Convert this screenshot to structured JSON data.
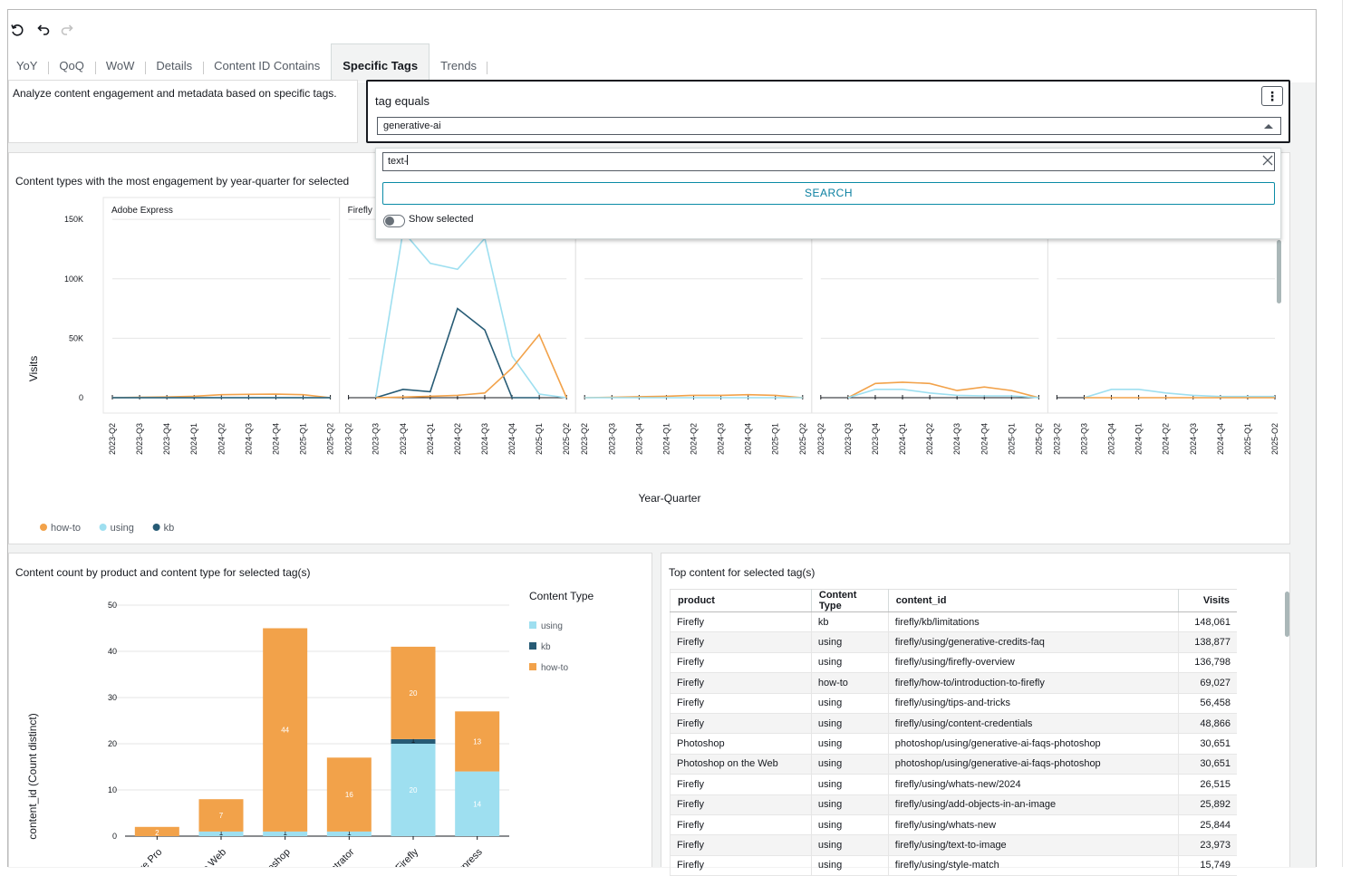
{
  "toolbar": {
    "icons": [
      "reset-icon",
      "undo-icon",
      "redo-icon"
    ]
  },
  "tabs": [
    {
      "label": "YoY"
    },
    {
      "label": "QoQ"
    },
    {
      "label": "WoW"
    },
    {
      "label": "Details"
    },
    {
      "label": "Content ID Contains"
    },
    {
      "label": "Specific Tags",
      "active": true
    },
    {
      "label": "Trends"
    }
  ],
  "description": "Analyze content engagement and metadata based on specific tags.",
  "filter": {
    "title": "tag equals",
    "selected_value": "generative-ai",
    "search_text": "text-",
    "search_button": "SEARCH",
    "show_selected_label": "Show selected",
    "show_selected_on": false
  },
  "colors": {
    "how_to": "#f2a24a",
    "using": "#9edff0",
    "kb": "#275b75",
    "accent": "#0a8ba6"
  },
  "chart_data": [
    {
      "type": "line",
      "title": "Content types with the most engagement by year-quarter for selected",
      "xlabel": "Year-Quarter",
      "ylabel": "Visits",
      "y_ticks": [
        "0",
        "50K",
        "100K",
        "150K"
      ],
      "ylim": [
        0,
        160000
      ],
      "legend": [
        "how-to",
        "using",
        "kb"
      ],
      "legend_position": "bottom-left",
      "panels": [
        {
          "name": "Adobe Express",
          "x": [
            "2023-Q2",
            "2023-Q3",
            "2023-Q4",
            "2024-Q1",
            "2024-Q2",
            "2024-Q3",
            "2024-Q4",
            "2025-Q1",
            "2025-Q2"
          ],
          "series": [
            {
              "name": "how-to",
              "values": [
                0,
                300,
                600,
                1200,
                2500,
                2800,
                3000,
                2500,
                0
              ]
            },
            {
              "name": "using",
              "values": [
                0,
                0,
                0,
                0,
                0,
                0,
                0,
                0,
                0
              ]
            },
            {
              "name": "kb",
              "values": [
                0,
                0,
                0,
                0,
                0,
                0,
                0,
                0,
                0
              ]
            }
          ]
        },
        {
          "name": "Firefly",
          "x": [
            "2023-Q2",
            "2023-Q3",
            "2023-Q4",
            "2024-Q1",
            "2024-Q2",
            "2024-Q3",
            "2024-Q4",
            "2025-Q1",
            "2025-Q2"
          ],
          "series": [
            {
              "name": "using",
              "values": null,
              "points": [
                [
                  1,
                  0
                ],
                [
                  2,
                  140000
                ],
                [
                  3,
                  113000
                ],
                [
                  4,
                  108000
                ],
                [
                  5,
                  134000
                ],
                [
                  6,
                  35000
                ],
                [
                  7,
                  3000
                ],
                [
                  8,
                  0
                ]
              ]
            },
            {
              "name": "kb",
              "values": null,
              "points": [
                [
                  1,
                  0
                ],
                [
                  2,
                  7000
                ],
                [
                  3,
                  5000
                ],
                [
                  4,
                  75000
                ],
                [
                  5,
                  57000
                ],
                [
                  6,
                  0
                ],
                [
                  7,
                  0
                ]
              ]
            },
            {
              "name": "how-to",
              "values": null,
              "points": [
                [
                  1,
                  0
                ],
                [
                  2,
                  500
                ],
                [
                  3,
                  1200
                ],
                [
                  4,
                  2000
                ],
                [
                  5,
                  4000
                ],
                [
                  6,
                  25000
                ],
                [
                  7,
                  53000
                ],
                [
                  8,
                  0
                ]
              ]
            }
          ]
        },
        {
          "name": "",
          "x": [
            "2023-Q2",
            "2023-Q3",
            "2023-Q4",
            "2024-Q1",
            "2024-Q2",
            "2024-Q3",
            "2024-Q4",
            "2025-Q1",
            "2025-Q2"
          ],
          "series": [
            {
              "name": "how-to",
              "values": [
                0,
                400,
                800,
                1200,
                2000,
                2000,
                2500,
                2000,
                0
              ]
            },
            {
              "name": "using",
              "values": [
                0,
                0,
                0,
                0,
                0,
                0,
                0,
                0,
                0
              ]
            }
          ]
        },
        {
          "name": "",
          "x": [
            "2023-Q2",
            "2023-Q3",
            "2023-Q4",
            "2024-Q1",
            "2024-Q2",
            "2024-Q3",
            "2024-Q4",
            "2025-Q1",
            "2025-Q2"
          ],
          "series": [
            {
              "name": "how-to",
              "values": [
                null,
                0,
                12000,
                13000,
                12000,
                6000,
                9000,
                6000,
                0
              ]
            },
            {
              "name": "using",
              "values": [
                null,
                0,
                7000,
                7000,
                4000,
                2000,
                1500,
                1500,
                0
              ]
            }
          ]
        },
        {
          "name": "",
          "x": [
            "2023-Q2",
            "2023-Q3",
            "2023-Q4",
            "2024-Q1",
            "2024-Q2",
            "2024-Q3",
            "2024-Q4",
            "2025-Q1",
            "2025-Q2"
          ],
          "series": [
            {
              "name": "using",
              "values": [
                null,
                0,
                7000,
                7000,
                4000,
                2000,
                1000,
                1000,
                1000
              ]
            },
            {
              "name": "how-to",
              "values": [
                null,
                0,
                0,
                0,
                0,
                0,
                0,
                0,
                0
              ]
            }
          ]
        }
      ]
    },
    {
      "type": "bar",
      "stacked": true,
      "title": "Content count by product and content type for selected tag(s)",
      "ylabel": "content_id (Count distinct)",
      "ylim": [
        0,
        50
      ],
      "y_ticks": [
        "0",
        "10",
        "20",
        "30",
        "40",
        "50"
      ],
      "legend_title": "Content Type",
      "legend": [
        "using",
        "kb",
        "how-to"
      ],
      "categories": [
        "ere Pro",
        "he Web",
        "otoshop",
        "strator",
        "Firefly",
        "Express"
      ],
      "series": [
        {
          "name": "using",
          "values": [
            0,
            1,
            1,
            1,
            20,
            14
          ]
        },
        {
          "name": "kb",
          "values": [
            0,
            0,
            0,
            0,
            1,
            0
          ]
        },
        {
          "name": "how-to",
          "values": [
            2,
            7,
            44,
            16,
            20,
            13
          ]
        }
      ],
      "labels": [
        [
          "",
          "1",
          "1",
          "1",
          "20",
          "14"
        ],
        [
          "",
          "",
          "",
          "",
          "1",
          ""
        ],
        [
          "2",
          "7",
          "44",
          "16",
          "20",
          "13"
        ]
      ]
    }
  ],
  "top_table": {
    "title": "Top content for selected tag(s)",
    "columns": [
      "product",
      "Content Type",
      "content_id",
      "Visits"
    ],
    "rows": [
      [
        "Firefly",
        "kb",
        "firefly/kb/limitations",
        "148,061"
      ],
      [
        "Firefly",
        "using",
        "firefly/using/generative-credits-faq",
        "138,877"
      ],
      [
        "Firefly",
        "using",
        "firefly/using/firefly-overview",
        "136,798"
      ],
      [
        "Firefly",
        "how-to",
        "firefly/how-to/introduction-to-firefly",
        "69,027"
      ],
      [
        "Firefly",
        "using",
        "firefly/using/tips-and-tricks",
        "56,458"
      ],
      [
        "Firefly",
        "using",
        "firefly/using/content-credentials",
        "48,866"
      ],
      [
        "Photoshop",
        "using",
        "photoshop/using/generative-ai-faqs-photoshop",
        "30,651"
      ],
      [
        "Photoshop on the Web",
        "using",
        "photoshop/using/generative-ai-faqs-photoshop",
        "30,651"
      ],
      [
        "Firefly",
        "using",
        "firefly/using/whats-new/2024",
        "26,515"
      ],
      [
        "Firefly",
        "using",
        "firefly/using/add-objects-in-an-image",
        "25,892"
      ],
      [
        "Firefly",
        "using",
        "firefly/using/whats-new",
        "25,844"
      ],
      [
        "Firefly",
        "using",
        "firefly/using/text-to-image",
        "23,973"
      ],
      [
        "Firefly",
        "using",
        "firefly/using/style-match",
        "15,749"
      ]
    ]
  }
}
